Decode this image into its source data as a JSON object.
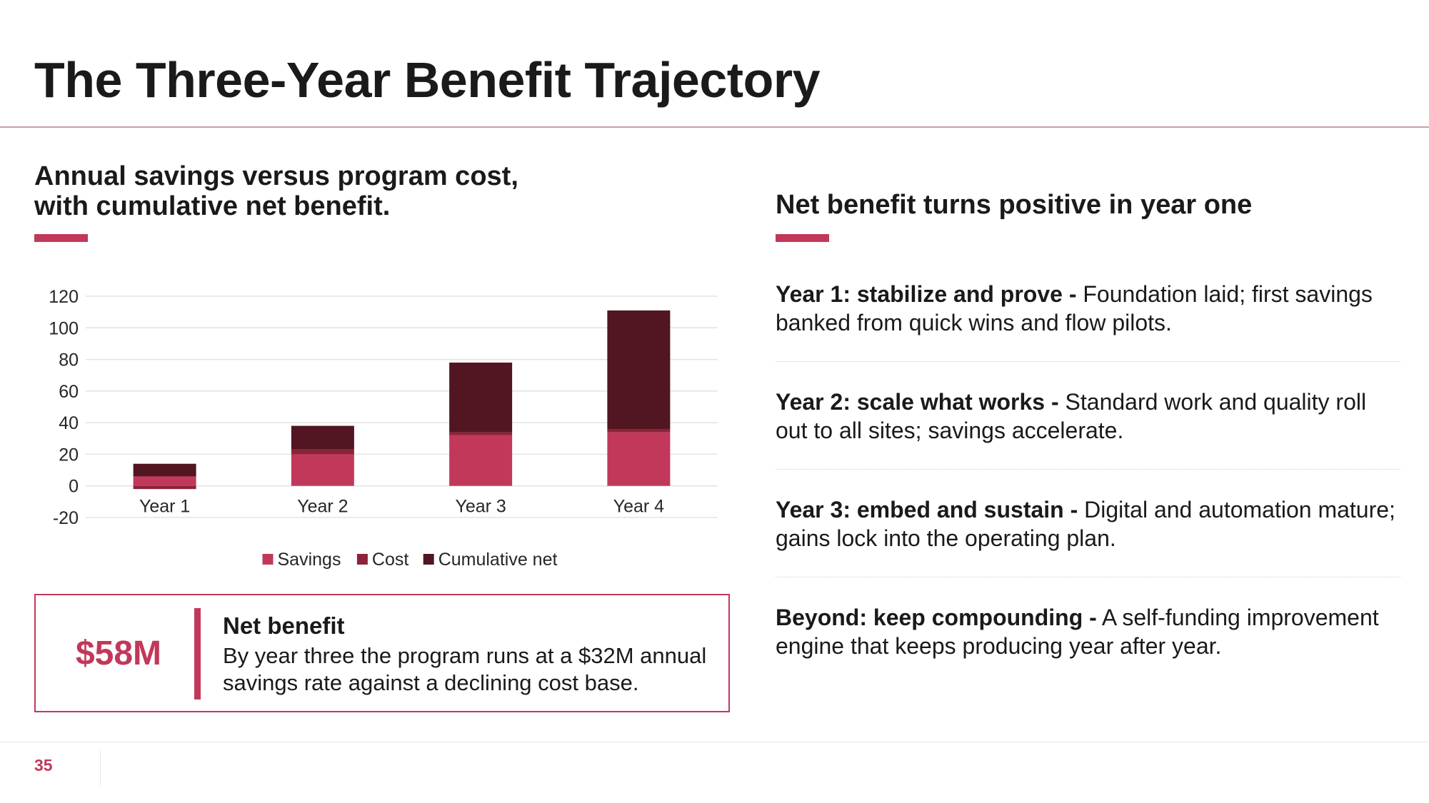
{
  "slide": {
    "title": "The Three-Year Benefit Trajectory",
    "page_number": "35"
  },
  "colors": {
    "savings": "#c2385a",
    "cost": "#8c2338",
    "cumulative_net": "#521522",
    "accent": "#c2385a"
  },
  "left": {
    "heading_line1": "Annual savings versus program cost,",
    "heading_line2": "with cumulative net benefit.",
    "callout": {
      "value": "$58M",
      "heading": "Net benefit",
      "body": "By year three the program runs at a $32M annual savings rate against a declining cost base."
    }
  },
  "right": {
    "heading": "Net benefit turns positive in year one",
    "steps": [
      {
        "label": "Year 1: stabilize and prove -",
        "text": " Foundation laid; first savings banked from quick wins and flow pilots."
      },
      {
        "label": "Year 2: scale what works -",
        "text": " Standard work and quality roll out to all sites; savings accelerate."
      },
      {
        "label": "Year 3: embed and sustain -",
        "text": " Digital and automation mature; gains lock into the operating plan."
      },
      {
        "label": "Beyond: keep compounding -",
        "text": " A self-funding improvement engine that keeps producing year after year."
      }
    ]
  },
  "chart_data": {
    "type": "bar",
    "stacked": true,
    "title": "",
    "xlabel": "",
    "ylabel": "",
    "categories": [
      "Year 1",
      "Year 2",
      "Year 3",
      "Year 4"
    ],
    "series": [
      {
        "name": "Savings",
        "values": [
          6,
          20,
          32,
          34
        ]
      },
      {
        "name": "Cost",
        "values": [
          -2,
          3,
          2,
          2
        ]
      },
      {
        "name": "Cumulative net",
        "values": [
          8,
          15,
          44,
          75
        ]
      }
    ],
    "ylim": [
      -20,
      120
    ],
    "yticks": [
      120,
      100,
      80,
      60,
      40,
      20,
      0,
      -20
    ],
    "grid": true,
    "legend": "bottom"
  }
}
